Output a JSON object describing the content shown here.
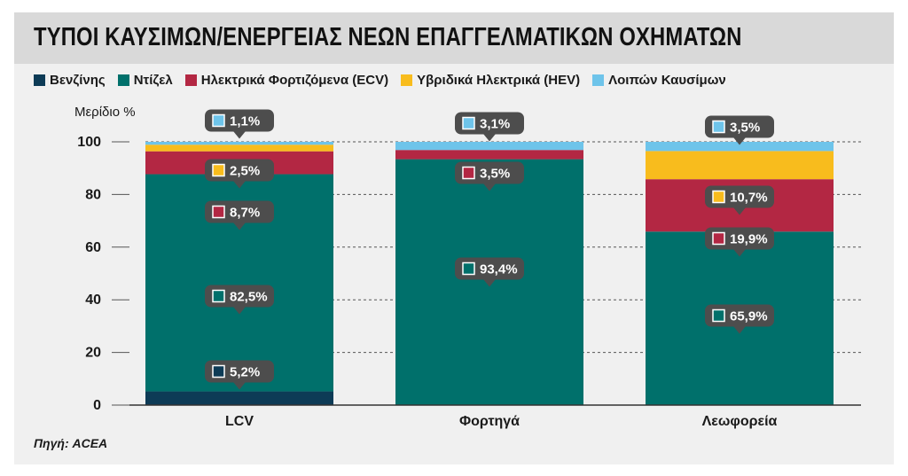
{
  "title": "ΤΥΠΟΙ ΚΑΥΣΙΜΩΝ/ΕΝΕΡΓΕΙΑΣ ΝΕΩΝ ΕΠΑΓΓΕΛΜΑΤΙΚΩΝ ΟΧΗΜΑΤΩΝ",
  "source": "Πηγή: ACEA",
  "chart_data": {
    "type": "bar",
    "stacked": true,
    "ylabel": "Μερίδιο %",
    "xlabel": "",
    "ylim": [
      0,
      100
    ],
    "yticks": [
      "0",
      "20",
      "40",
      "60",
      "80",
      "100"
    ],
    "grid": true,
    "legend_position": "top-left",
    "categories": [
      "LCV",
      "Φορτηγά",
      "Λεωφορεία"
    ],
    "series": [
      {
        "name": "Βενζίνης",
        "color": "#0d3b56",
        "values": [
          5.2,
          0,
          0
        ],
        "labels": [
          "5,2%",
          "",
          ""
        ]
      },
      {
        "name": "Ντίζελ",
        "color": "#00706b",
        "values": [
          82.5,
          93.4,
          65.9
        ],
        "labels": [
          "82,5%",
          "93,4%",
          "65,9%"
        ]
      },
      {
        "name": "Ηλεκτρικά Φορτιζόμενα (ECV)",
        "color": "#b32743",
        "values": [
          8.7,
          3.5,
          19.9
        ],
        "labels": [
          "8,7%",
          "3,5%",
          "19,9%"
        ]
      },
      {
        "name": "Υβριδικά Ηλεκτρικά (HEV)",
        "color": "#f8bc1d",
        "values": [
          2.5,
          0,
          10.7
        ],
        "labels": [
          "2,5%",
          "",
          "10,7%"
        ]
      },
      {
        "name": "Λοιπών Καυσίμων",
        "color": "#6ec4ea",
        "values": [
          1.1,
          3.1,
          3.5
        ],
        "labels": [
          "1,1%",
          "3,1%",
          "3,5%"
        ]
      }
    ]
  }
}
